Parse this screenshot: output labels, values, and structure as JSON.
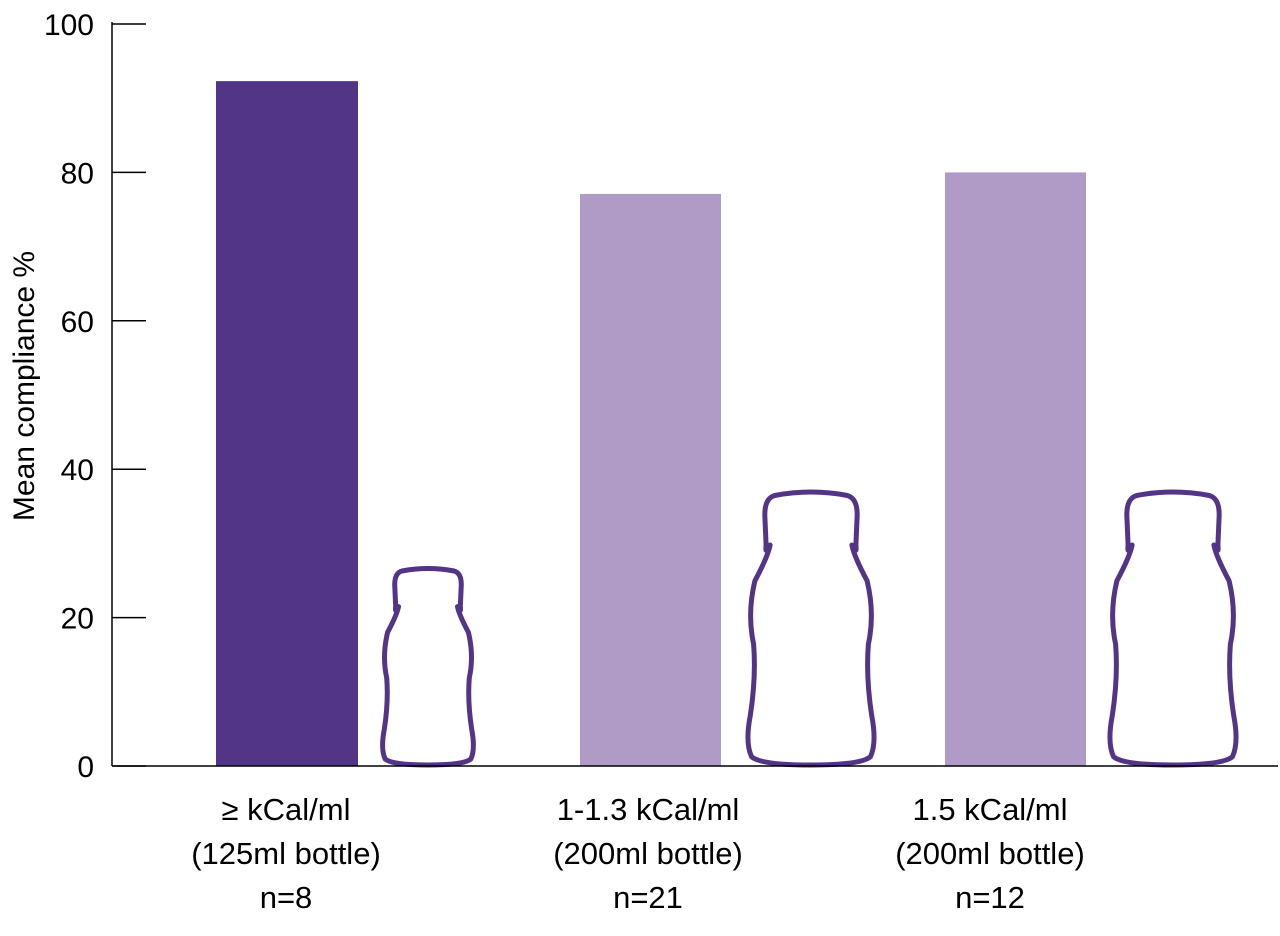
{
  "chart_data": {
    "type": "bar",
    "categories": [
      {
        "line1": "≥ kCal/ml",
        "line2": "(125ml bottle)",
        "line3": "n=8"
      },
      {
        "line1": "1-1.3 kCal/ml",
        "line2": "(200ml bottle)",
        "line3": "n=21"
      },
      {
        "line1": "1.5 kCal/ml",
        "line2": "(200ml bottle)",
        "line3": "n=12"
      }
    ],
    "values": [
      92.3,
      77.1,
      80.0
    ],
    "bar_colors": [
      "#533587",
      "#b09bc6",
      "#b09bc6"
    ],
    "bottle_sizes_ml": [
      125,
      200,
      200
    ],
    "ylabel": "Mean compliance %",
    "yticks": [
      0,
      20,
      40,
      60,
      80,
      100
    ],
    "ylim": [
      0,
      100
    ],
    "grid": false,
    "legend": "none",
    "bottle_icon": "bottle-outline-icon",
    "bottle_color": "#533587"
  }
}
